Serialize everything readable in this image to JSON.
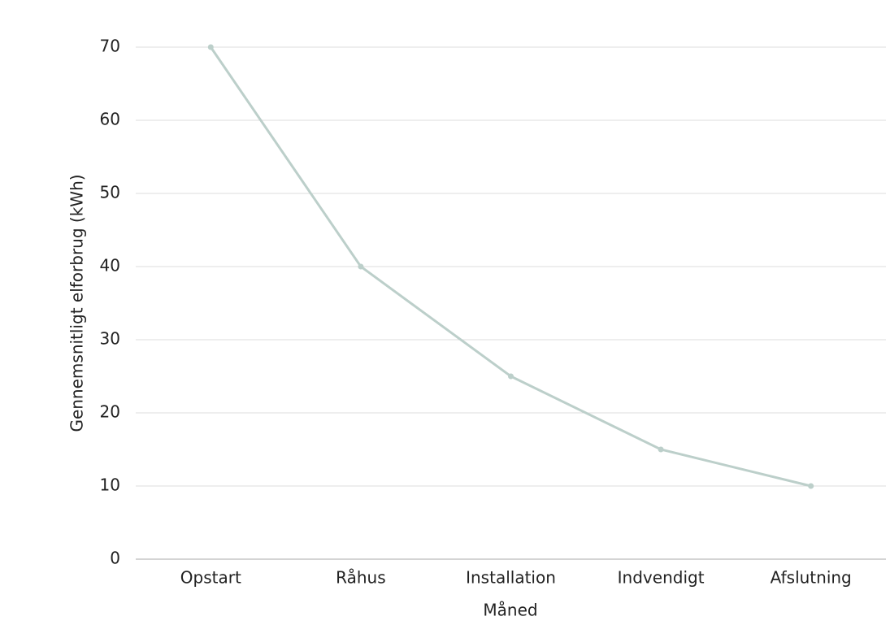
{
  "chart_data": {
    "type": "line",
    "categories": [
      "Opstart",
      "Råhus",
      "Installation",
      "Indvendigt",
      "Afslutning"
    ],
    "series": [
      {
        "name": "Gennemsnitligt elforbrug",
        "color": "#bccfca",
        "values": [
          70,
          40,
          25,
          15,
          10
        ]
      }
    ],
    "xlabel": "Måned",
    "ylabel": "Gennemsnitligt elforbrug (kWh)",
    "ylim": [
      0,
      70
    ],
    "yticks": [
      0,
      10,
      20,
      30,
      40,
      50,
      60,
      70
    ],
    "grid": true
  }
}
